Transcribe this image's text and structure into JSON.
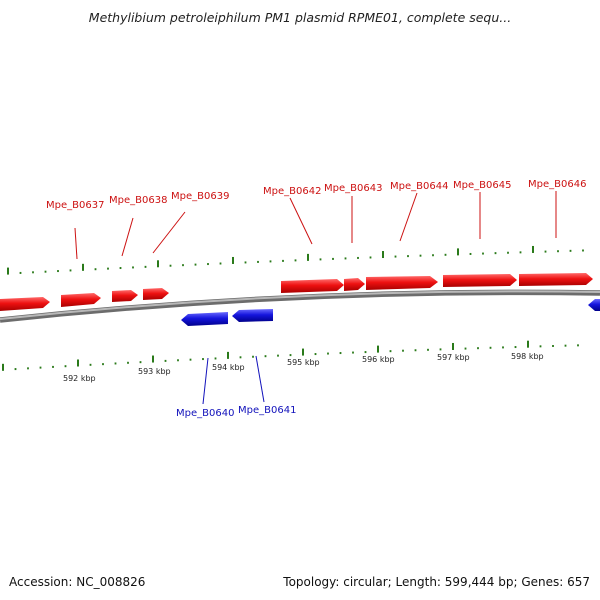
{
  "title": "Methylibium petroleiphilum PM1 plasmid RPME01, complete sequ...",
  "footer": {
    "accession": "Accession: NC_008826",
    "info": "Topology: circular; Length: 599,444 bp; Genes: 657"
  },
  "colors": {
    "forward_gene": "#ee1111",
    "reverse_gene": "#1515dd",
    "backbone": "#888888",
    "ticks": "#2a7a1a",
    "forward_label": "#cc1111",
    "reverse_label": "#1111bb"
  },
  "forward_genes": [
    "Mpe_B0637",
    "Mpe_B0638",
    "Mpe_B0639",
    "Mpe_B0642",
    "Mpe_B0643",
    "Mpe_B0644",
    "Mpe_B0645",
    "Mpe_B0646"
  ],
  "reverse_genes": [
    "Mpe_B0640",
    "Mpe_B0641"
  ],
  "kbp_labels": [
    "592 kbp",
    "593 kbp",
    "594 kbp",
    "595 kbp",
    "596 kbp",
    "597 kbp",
    "598 kbp"
  ]
}
